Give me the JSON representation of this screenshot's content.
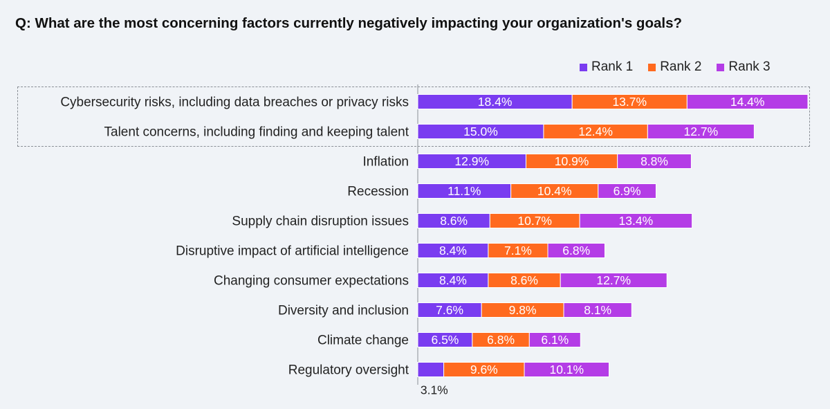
{
  "title": "Q: What are the most concerning factors currently negatively impacting your organization's goals?",
  "legend": [
    {
      "label": "Rank 1",
      "color": "#7a3cf0"
    },
    {
      "label": "Rank 2",
      "color": "#ff6a1f"
    },
    {
      "label": "Rank 3",
      "color": "#b43ce6"
    }
  ],
  "chart_data": {
    "type": "bar",
    "orientation": "horizontal",
    "stacked": true,
    "categories": [
      "Cybersecurity risks, including data breaches or privacy risks",
      "Talent concerns, including finding and keeping talent",
      "Inflation",
      "Recession",
      "Supply chain disruption issues",
      "Disruptive impact of artificial intelligence ",
      "Changing consumer expectations",
      "Diversity and inclusion",
      "Climate change",
      "Regulatory oversight"
    ],
    "series": [
      {
        "name": "Rank 1",
        "color": "#7a3cf0",
        "values": [
          18.4,
          15.0,
          12.9,
          11.1,
          8.6,
          8.4,
          8.4,
          7.6,
          6.5,
          3.1
        ],
        "labels": [
          "18.4%",
          "15.0%",
          "12.9%",
          "11.1%",
          "8.6%",
          "8.4%",
          "8.4%",
          "7.6%",
          "6.5%",
          "3.1%"
        ]
      },
      {
        "name": "Rank 2",
        "color": "#ff6a1f",
        "values": [
          13.7,
          12.4,
          10.9,
          10.4,
          10.7,
          7.1,
          8.6,
          9.8,
          6.8,
          9.6
        ],
        "labels": [
          "13.7%",
          "12.4%",
          "10.9%",
          "10.4%",
          "10.7%",
          "7.1%",
          "8.6%",
          "9.8%",
          "6.8%",
          "9.6%"
        ]
      },
      {
        "name": "Rank 3",
        "color": "#b43ce6",
        "values": [
          14.4,
          12.7,
          8.8,
          6.9,
          13.4,
          6.8,
          12.7,
          8.1,
          6.1,
          10.1
        ],
        "labels": [
          "14.4%",
          "12.7%",
          "8.8%",
          "6.9%",
          "13.4%",
          "6.8%",
          "12.7%",
          "8.1%",
          "6.1%",
          "10.1%"
        ]
      }
    ],
    "highlighted_categories": [
      0,
      1
    ],
    "xlim": [
      0,
      46.5
    ]
  }
}
